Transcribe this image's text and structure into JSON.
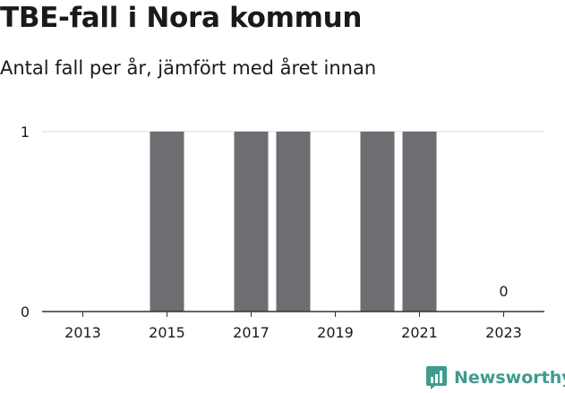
{
  "title": "TBE-fall i Nora kommun",
  "subtitle": "Antal fall per år, jämfört med året innan",
  "brand": {
    "name": "Newsworthy",
    "icon": "bar-chart-logo-icon",
    "color": "#3f9c8f"
  },
  "chart_data": {
    "type": "bar",
    "categories": [
      "2013",
      "2014",
      "2015",
      "2016",
      "2017",
      "2018",
      "2019",
      "2020",
      "2021",
      "2022",
      "2023"
    ],
    "values": [
      0,
      0,
      1,
      0,
      1,
      1,
      0,
      1,
      1,
      0,
      0
    ],
    "x_tick_labels": [
      "2013",
      "2015",
      "2017",
      "2019",
      "2021",
      "2023"
    ],
    "y_ticks": [
      0,
      1
    ],
    "ylim": [
      0,
      1
    ],
    "bar_color": "#6e6d72",
    "annotations": [
      {
        "category": "2023",
        "text": "0"
      }
    ],
    "grid": true,
    "legend": false
  }
}
